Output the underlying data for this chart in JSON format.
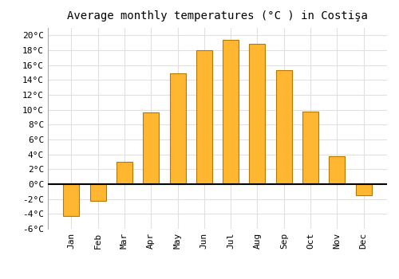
{
  "title": "Average monthly temperatures (°C ) in Costişa",
  "months": [
    "Jan",
    "Feb",
    "Mar",
    "Apr",
    "May",
    "Jun",
    "Jul",
    "Aug",
    "Sep",
    "Oct",
    "Nov",
    "Dec"
  ],
  "values": [
    -4.3,
    -2.2,
    3.0,
    9.6,
    14.9,
    18.0,
    19.4,
    18.9,
    15.3,
    9.7,
    3.7,
    -1.5
  ],
  "bar_color_top": "#FFB732",
  "bar_color_bottom": "#F59400",
  "bar_edge_color": "#B87800",
  "ylim": [
    -6,
    21
  ],
  "yticks": [
    -6,
    -4,
    -2,
    0,
    2,
    4,
    6,
    8,
    10,
    12,
    14,
    16,
    18,
    20
  ],
  "ytick_labels": [
    "-6°C",
    "-4°C",
    "-2°C",
    "0°C",
    "2°C",
    "4°C",
    "6°C",
    "8°C",
    "10°C",
    "12°C",
    "14°C",
    "16°C",
    "18°C",
    "20°C"
  ],
  "background_color": "#ffffff",
  "grid_color": "#e0e0e0",
  "title_fontsize": 10,
  "tick_fontsize": 8,
  "bar_width": 0.6
}
